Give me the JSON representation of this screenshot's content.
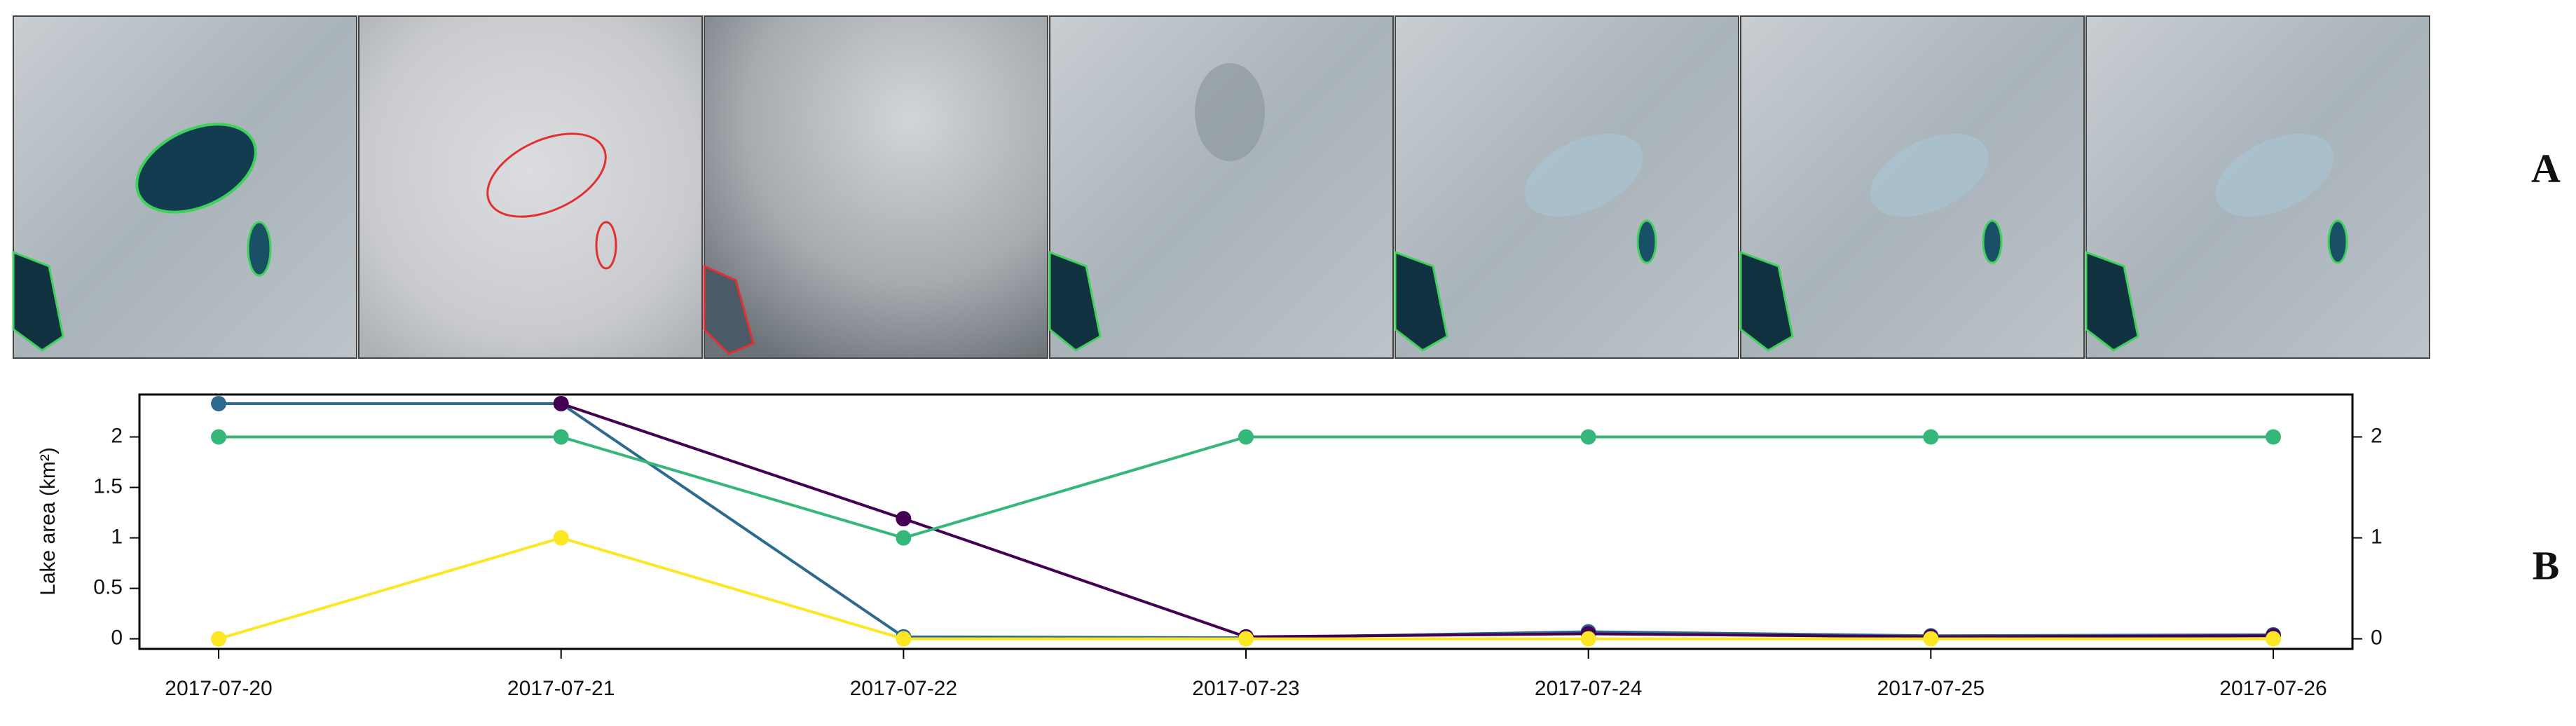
{
  "panel_labels": [
    "A",
    "B"
  ],
  "chart_data": {
    "type": "line",
    "y_label": "Lake area (km²)",
    "categories": [
      "2017-07-20",
      "2017-07-21",
      "2017-07-22",
      "2017-07-23",
      "2017-07-24",
      "2017-07-25",
      "2017-07-26"
    ],
    "series": [
      {
        "color": "#2c6a8f",
        "values": [
          2.33,
          2.33,
          0.02,
          0.01,
          0.07,
          0.03,
          0.04
        ]
      },
      {
        "color": "#440154",
        "values": [
          null,
          2.33,
          1.19,
          0.02,
          0.05,
          0.02,
          0.03
        ]
      },
      {
        "color": "#35b779",
        "axis": "y2",
        "values": [
          2,
          2,
          1,
          2,
          2,
          2,
          2
        ]
      },
      {
        "color": "#fde725",
        "axis": "y2",
        "values": [
          0,
          1,
          0,
          0,
          0,
          0,
          0
        ]
      }
    ],
    "ylim": [
      -0.1,
      2.42
    ],
    "yticks": [
      0,
      0.5,
      1,
      1.5,
      2
    ],
    "y2lim": [
      -0.1,
      2.42
    ],
    "y2ticks": [
      0,
      1,
      2
    ]
  }
}
